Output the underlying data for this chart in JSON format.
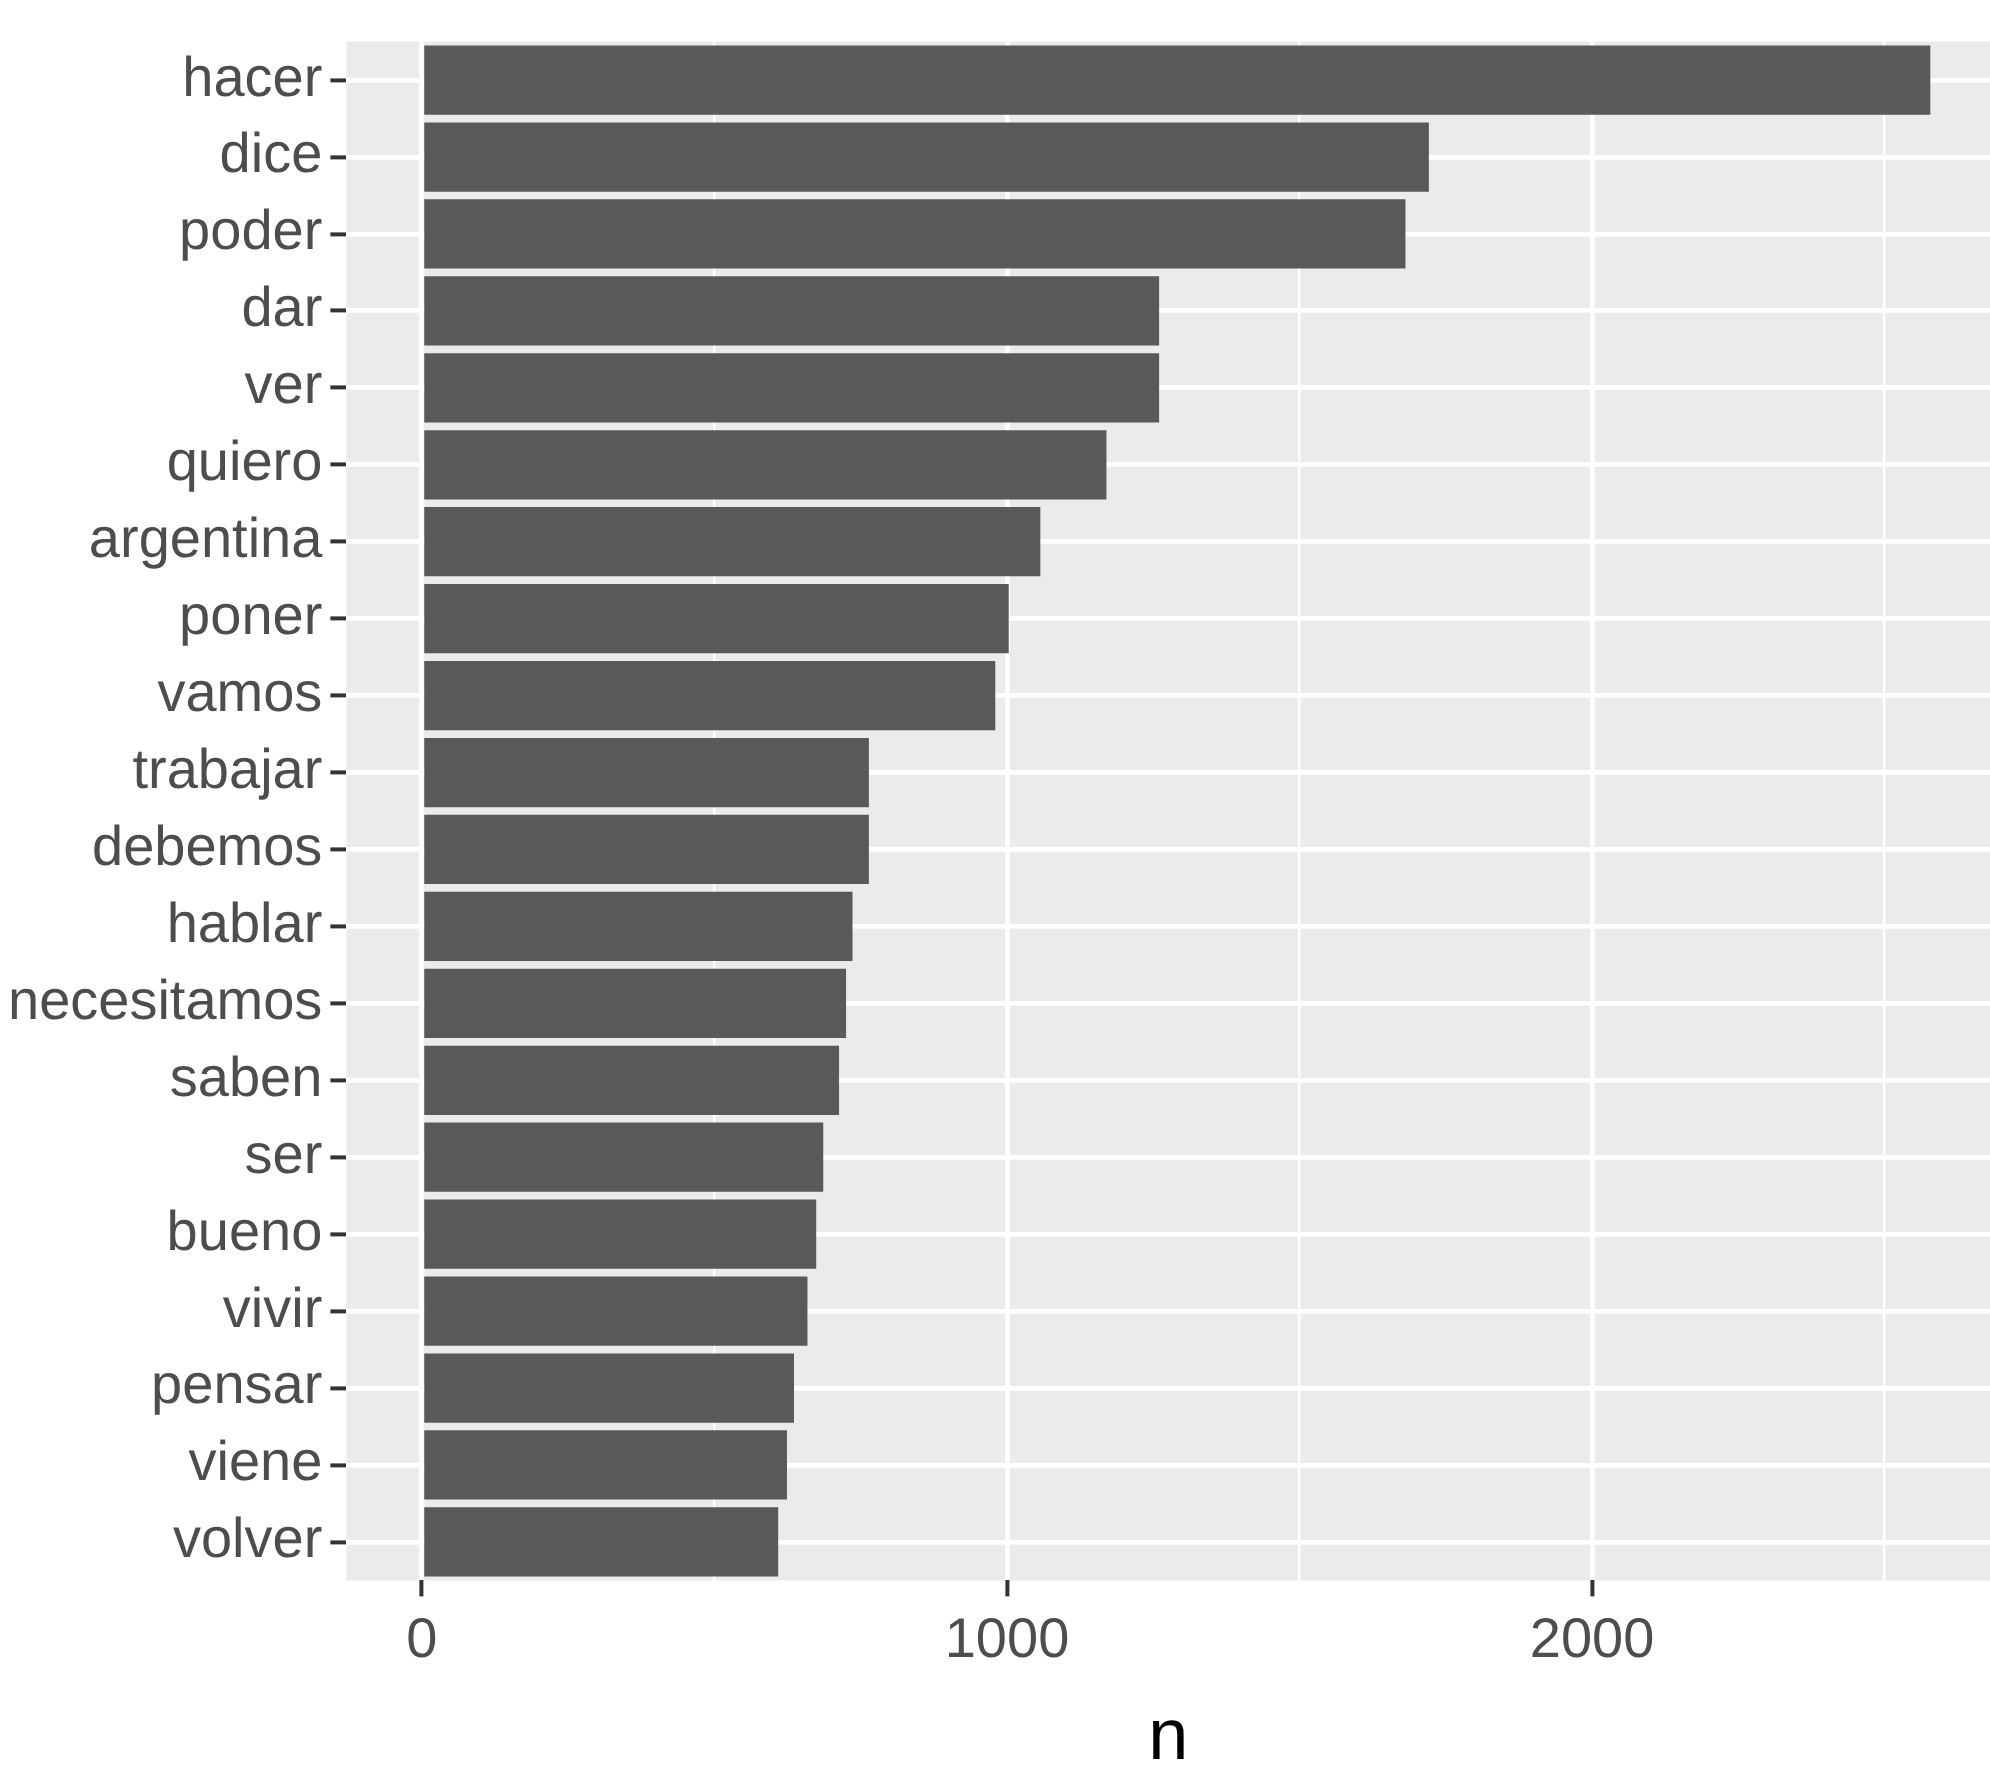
{
  "chart_data": {
    "type": "bar",
    "orientation": "horizontal",
    "xlabel": "n",
    "categories": [
      "hacer",
      "dice",
      "poder",
      "dar",
      "ver",
      "quiero",
      "argentina",
      "poner",
      "vamos",
      "trabajar",
      "debemos",
      "hablar",
      "necesitamos",
      "saben",
      "ser",
      "bueno",
      "vivir",
      "pensar",
      "viene",
      "volver"
    ],
    "values": [
      2578,
      1721,
      1681,
      1260,
      1260,
      1170,
      1057,
      1003,
      980,
      764,
      764,
      736,
      725,
      713,
      686,
      674,
      659,
      636,
      624,
      609
    ],
    "color": "#595959",
    "xlim": [
      -129,
      2680
    ],
    "xticks": [
      0,
      {
        "value": 500,
        "label": null
      },
      1000,
      {
        "value": 1500,
        "label": null
      },
      2000,
      {
        "value": 2500,
        "label": null
      }
    ],
    "grid": true
  }
}
